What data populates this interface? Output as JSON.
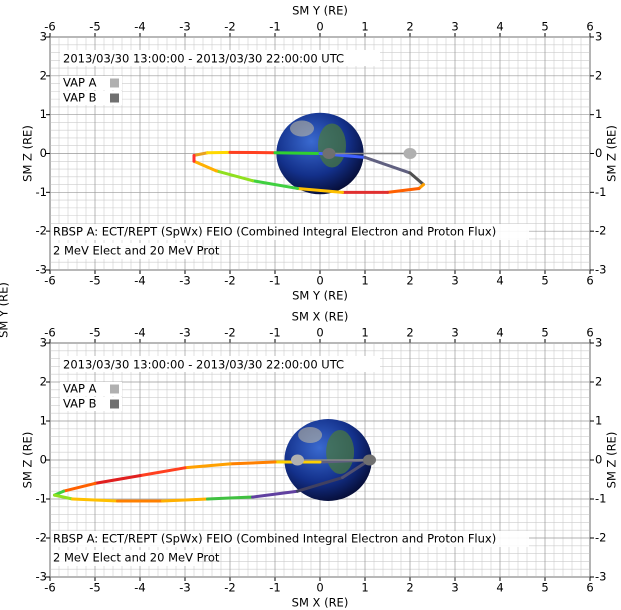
{
  "edge_label": "SM Y (RE)",
  "chart_data": [
    {
      "type": "orbit",
      "x2label": "SM Y (RE)",
      "xlabel": "SM Y (RE)",
      "ylabel": "SM Z (RE)",
      "y2label": "SM Z (RE)",
      "subtitle": "2013/03/30 13:00:00 - 2013/03/30 22:00:00 UTC",
      "annotations": [
        "RBSP A: ECT/REPT (SpWx) FEIO (Combined Integral Electron and Proton Flux)",
        "2 MeV Elect and 20 MeV Prot"
      ],
      "xlim": [
        -6,
        6
      ],
      "ylim": [
        -3,
        3
      ],
      "xticks": [
        -6,
        -5,
        -4,
        -3,
        -2,
        -1,
        0,
        1,
        2,
        3,
        4,
        5,
        6
      ],
      "yticks": [
        -3,
        -2,
        -1,
        0,
        1,
        2,
        3
      ],
      "grid": true,
      "orbit": {
        "x": [
          -2.8,
          -2.5,
          -2,
          -1,
          0,
          1,
          2,
          2.3,
          2.2,
          1.5,
          0.5,
          -0.5,
          -1.5,
          -2.3,
          -2.8,
          -2.8
        ],
        "y": [
          -0.05,
          0.02,
          0.03,
          0.02,
          0,
          -0.1,
          -0.5,
          -0.8,
          -0.9,
          -1.0,
          -1.0,
          -0.9,
          -0.7,
          -0.45,
          -0.2,
          -0.05
        ],
        "colors": [
          "#e8a020",
          "#ffd800",
          "#ff4020",
          "#30d030",
          "#4060ff",
          "#606080",
          "#505050",
          "#ffa000",
          "#ff6000",
          "#e03030",
          "#ffc000",
          "#40d040",
          "#90e020",
          "#ffb000",
          "#ff3030",
          "#ff3030"
        ]
      },
      "series": [
        {
          "name": "VAP A",
          "color": "#b0b0b0",
          "x": [
            2
          ],
          "y": [
            0
          ]
        },
        {
          "name": "VAP B",
          "color": "#707070",
          "x": [
            0.2
          ],
          "y": [
            0
          ]
        }
      ]
    },
    {
      "type": "orbit",
      "x2label": "SM X (RE)",
      "xlabel": "SM X (RE)",
      "ylabel": "SM Z (RE)",
      "y2label": "SM Z (RE)",
      "subtitle": "2013/03/30 13:00:00 - 2013/03/30 22:00:00 UTC",
      "annotations": [
        "RBSP A: ECT/REPT (SpWx) FEIO (Combined Integral Electron and Proton Flux)",
        "2 MeV Elect and 20 MeV Prot"
      ],
      "xlim": [
        -6,
        6
      ],
      "ylim": [
        -3,
        3
      ],
      "xticks": [
        -6,
        -5,
        -4,
        -3,
        -2,
        -1,
        0,
        1,
        2,
        3,
        4,
        5,
        6
      ],
      "yticks": [
        -3,
        -2,
        -1,
        0,
        1,
        2,
        3
      ],
      "grid": true,
      "orbit": {
        "x": [
          1.1,
          0,
          -1,
          -2,
          -3,
          -4,
          -5,
          -5.7,
          -5.9,
          -5.5,
          -4.5,
          -3.5,
          -2.5,
          -1.5,
          -0.5,
          0.5,
          1.1
        ],
        "y": [
          0,
          -0.05,
          -0.05,
          -0.1,
          -0.2,
          -0.4,
          -0.6,
          -0.8,
          -0.9,
          -1.0,
          -1.05,
          -1.05,
          -1.0,
          -0.95,
          -0.8,
          -0.45,
          0
        ],
        "colors": [
          "#606080",
          "#ffd000",
          "#ff8000",
          "#ffa000",
          "#ff4020",
          "#e02020",
          "#ff6000",
          "#40d040",
          "#90e020",
          "#ffc000",
          "#ff8000",
          "#ffb000",
          "#40c040",
          "#6040a0",
          "#404060",
          "#505070",
          "#505070"
        ]
      },
      "series": [
        {
          "name": "VAP A",
          "color": "#b0b0b0",
          "x": [
            -0.5
          ],
          "y": [
            0
          ]
        },
        {
          "name": "VAP B",
          "color": "#707070",
          "x": [
            1.1
          ],
          "y": [
            0
          ]
        }
      ]
    }
  ]
}
